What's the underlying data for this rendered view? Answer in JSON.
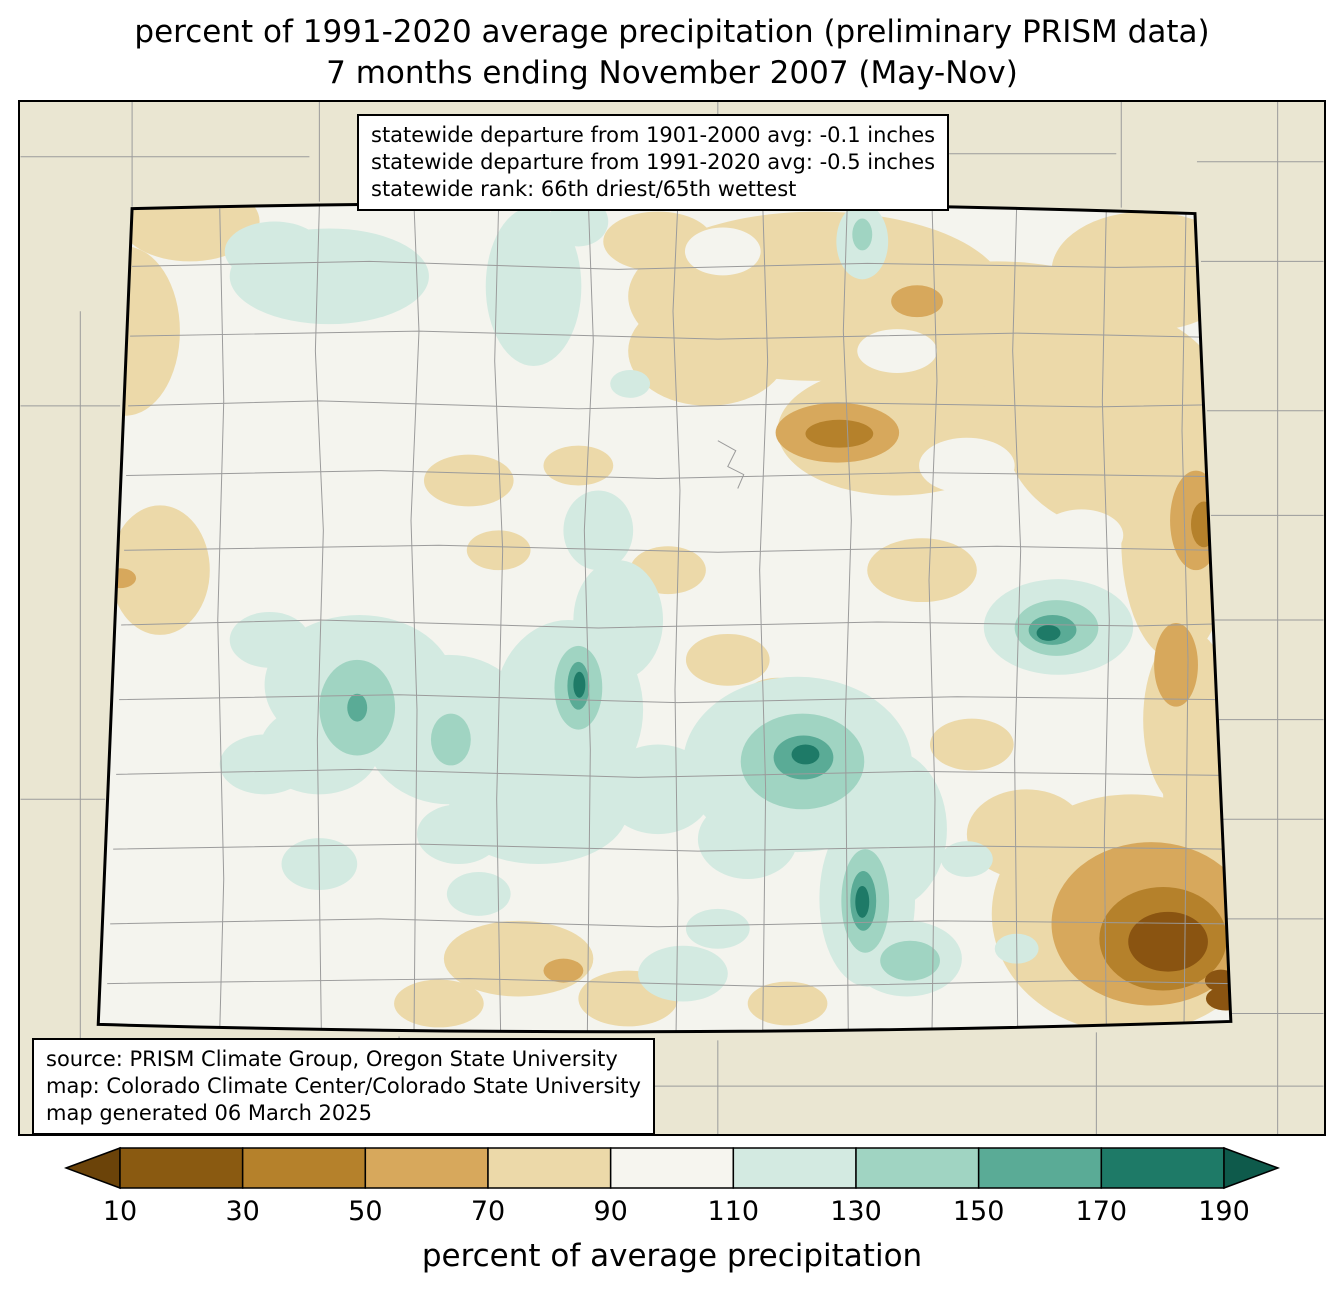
{
  "title": {
    "line1": "percent of 1991-2020 average precipitation (preliminary PRISM data)",
    "line2": "7 months ending November 2007 (May-Nov)"
  },
  "stats_box": {
    "lines": [
      "statewide departure from 1901-2000 avg: -0.1 inches",
      "statewide departure from 1991-2020 avg: -0.5 inches",
      "statewide rank: 66th driest/65th wettest"
    ]
  },
  "source_box": {
    "lines": [
      "source: PRISM Climate Group, Oregon State University",
      "map: Colorado Climate Center/Colorado State University",
      "map generated 06 March 2025"
    ]
  },
  "colorbar": {
    "caption": "percent of average precipitation",
    "tick_labels": [
      "10",
      "30",
      "50",
      "70",
      "90",
      "110",
      "130",
      "150",
      "170",
      "190"
    ],
    "segment_colors": [
      "#8a5a11",
      "#b5812b",
      "#d7a85c",
      "#ecd9a9",
      "#f6f5ef",
      "#d3eae1",
      "#a0d4c2",
      "#5aab96",
      "#1e7a67"
    ],
    "underflow_color": "#6b4309",
    "overflow_color": "#0e5a4b"
  },
  "map": {
    "region": "Colorado",
    "outside_fill": "#eae6d2",
    "state_fill": "#f4f4ee",
    "county_line_color": "#9b9b9b",
    "state_border_color": "#000000"
  }
}
